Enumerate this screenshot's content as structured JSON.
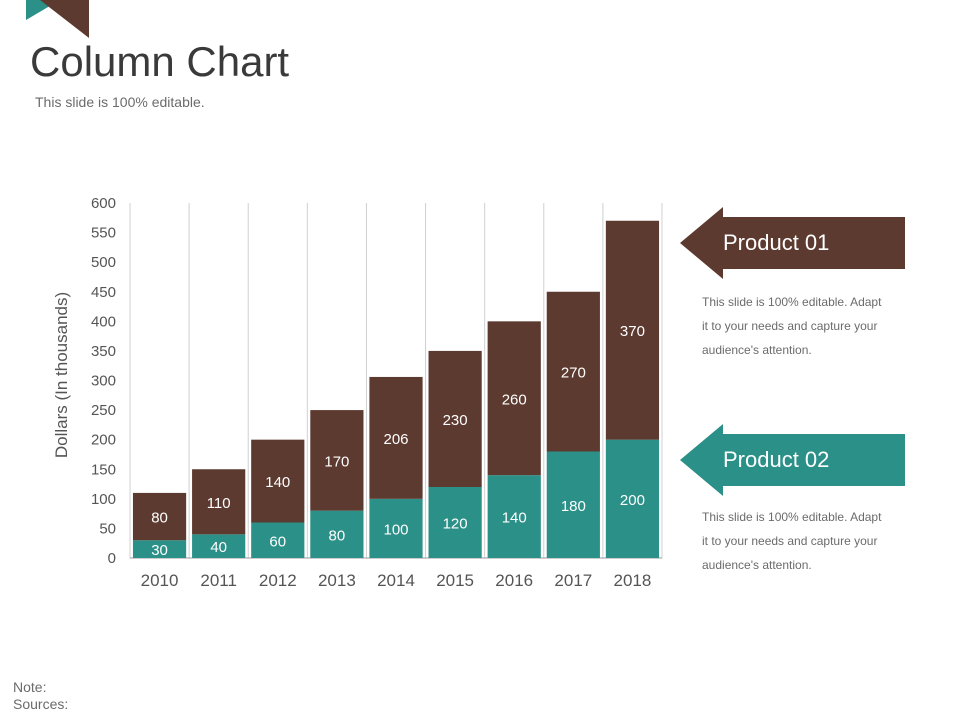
{
  "slide": {
    "title": "Column Chart",
    "subtitle": "This slide is 100% editable."
  },
  "colors": {
    "product01": "#5d3a30",
    "product02": "#2a9088",
    "gridline": "#d0d0d0",
    "axis_text": "#555555"
  },
  "chart_data": {
    "type": "bar",
    "stacked": true,
    "title": "",
    "xlabel": "",
    "ylabel": "Dollars (In thousands)",
    "ylim": [
      0,
      600
    ],
    "yticks": [
      0,
      50,
      100,
      150,
      200,
      250,
      300,
      350,
      400,
      450,
      500,
      550,
      600
    ],
    "categories": [
      "2010",
      "2011",
      "2012",
      "2013",
      "2014",
      "2015",
      "2016",
      "2017",
      "2018"
    ],
    "series": [
      {
        "name": "Product 02",
        "values": [
          30,
          40,
          60,
          80,
          100,
          120,
          140,
          180,
          200
        ]
      },
      {
        "name": "Product 01",
        "values": [
          80,
          110,
          140,
          170,
          206,
          230,
          260,
          270,
          370
        ]
      }
    ]
  },
  "legend": {
    "product01": {
      "label": "Product 01",
      "description": [
        "This slide is 100% editable. Adapt",
        "it to your needs and capture your",
        "audience's attention."
      ]
    },
    "product02": {
      "label": "Product 02",
      "description": [
        "This slide is 100% editable. Adapt",
        "it to your needs and capture your",
        "audience's attention."
      ]
    }
  },
  "footer": {
    "note": "Note:",
    "sources": "Sources:"
  }
}
